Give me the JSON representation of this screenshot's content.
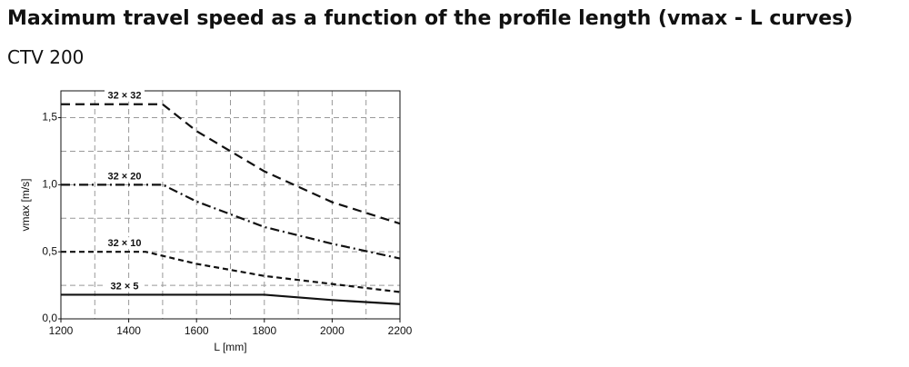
{
  "header": {
    "title": "Maximum travel speed as a function of the profile length (vmax - L curves)",
    "subtitle": "CTV 200"
  },
  "chart_data": {
    "type": "line",
    "x_label": "L [mm]",
    "y_label": "vmax [m/s]",
    "xlim": [
      1200,
      2200
    ],
    "xticks": [
      1200,
      1400,
      1600,
      1800,
      2000,
      2200
    ],
    "ylim": [
      0,
      1.7
    ],
    "yticks": [
      {
        "value": 0,
        "label": "0,0"
      },
      {
        "value": 0.5,
        "label": "0,5"
      },
      {
        "value": 1.0,
        "label": "1,0"
      },
      {
        "value": 1.5,
        "label": "1,5"
      }
    ],
    "grid": true,
    "series": [
      {
        "name": "32 × 32",
        "color": "#111111",
        "dash": "10,6",
        "x": [
          1200,
          1500,
          1600,
          1800,
          2000,
          2200
        ],
        "values": [
          1.6,
          1.6,
          1.4,
          1.1,
          0.87,
          0.71
        ]
      },
      {
        "name": "32 × 20",
        "color": "#111111",
        "dash": "10,4,2,4",
        "x": [
          1200,
          1500,
          1600,
          1800,
          2000,
          2200
        ],
        "values": [
          1.0,
          1.0,
          0.875,
          0.685,
          0.56,
          0.45
        ]
      },
      {
        "name": "32 × 10",
        "color": "#111111",
        "dash": "6,4",
        "x": [
          1200,
          1450,
          1600,
          1800,
          2000,
          2200
        ],
        "values": [
          0.5,
          0.5,
          0.41,
          0.32,
          0.26,
          0.2
        ]
      },
      {
        "name": "32 × 5",
        "color": "#111111",
        "dash": "none",
        "x": [
          1200,
          1800,
          2000,
          2200
        ],
        "values": [
          0.18,
          0.18,
          0.14,
          0.11
        ]
      }
    ]
  }
}
